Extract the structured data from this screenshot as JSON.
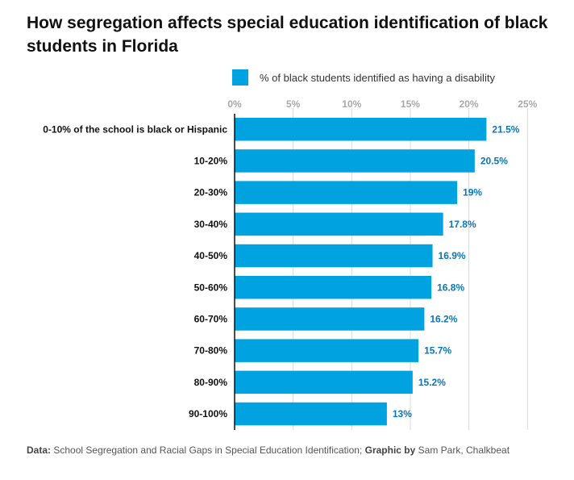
{
  "title": "How segregation affects special education identification of black students in Florida",
  "colors": {
    "bar": "#00a3e0",
    "value_label": "#0a76b8",
    "grid": "#d9d9d9",
    "axis": "#111111"
  },
  "chart_data": {
    "type": "bar",
    "orientation": "horizontal",
    "title": "How segregation affects special education identification of black students in Florida",
    "xlabel": "",
    "ylabel": "",
    "xlim": [
      0,
      25
    ],
    "ticks": [
      0,
      5,
      10,
      15,
      20,
      25
    ],
    "tick_labels": [
      "0%",
      "5%",
      "10%",
      "15%",
      "20%",
      "25%"
    ],
    "legend": "top",
    "grid": true,
    "categories": [
      "0-10% of the school is black or Hispanic",
      "10-20%",
      "20-30%",
      "30-40%",
      "40-50%",
      "50-60%",
      "60-70%",
      "70-80%",
      "80-90%",
      "90-100%"
    ],
    "series": [
      {
        "name": "% of black students identified as having a disability",
        "values": [
          21.5,
          20.5,
          19,
          17.8,
          16.9,
          16.8,
          16.2,
          15.7,
          15.2,
          13
        ],
        "labels": [
          "21.5%",
          "20.5%",
          "19%",
          "17.8%",
          "16.9%",
          "16.8%",
          "16.2%",
          "15.7%",
          "15.2%",
          "13%"
        ]
      }
    ]
  },
  "footer": {
    "data_label": "Data:",
    "data_text": "School Segregation and Racial Gaps in Special Education Identification;",
    "graphic_label": "Graphic by",
    "graphic_text": "Sam Park, Chalkbeat"
  }
}
